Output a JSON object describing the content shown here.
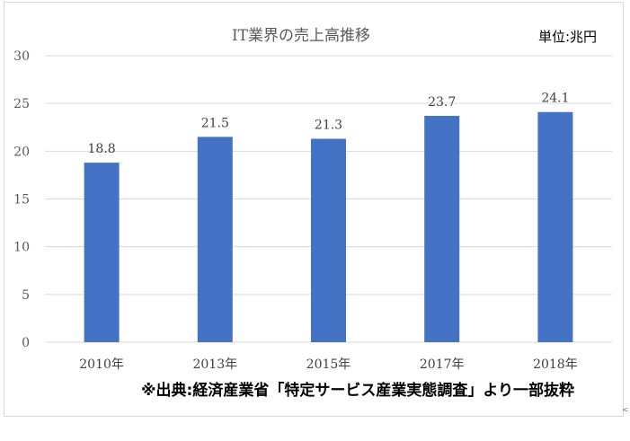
{
  "chart_data": {
    "type": "bar",
    "title": "IT業界の売上高推移",
    "unit_label": "単位:兆円",
    "categories": [
      "2010年",
      "2013年",
      "2015年",
      "2017年",
      "2018年"
    ],
    "values": [
      18.8,
      21.5,
      21.3,
      23.7,
      24.1
    ],
    "value_labels": [
      "18.8",
      "21.5",
      "21.3",
      "23.7",
      "24.1"
    ],
    "ylim": [
      0,
      30
    ],
    "yticks": [
      0,
      5,
      10,
      15,
      20,
      25,
      30
    ],
    "ytick_labels": [
      "0",
      "5",
      "10",
      "15",
      "20",
      "25",
      "30"
    ],
    "gridlines": true,
    "bar_color": "#4472C4",
    "grid_color": "#d9d9d9"
  },
  "footnote": "※出典:経済産業省「特定サービス産業実態調査」より一部抜粋",
  "corner_mark": "<"
}
